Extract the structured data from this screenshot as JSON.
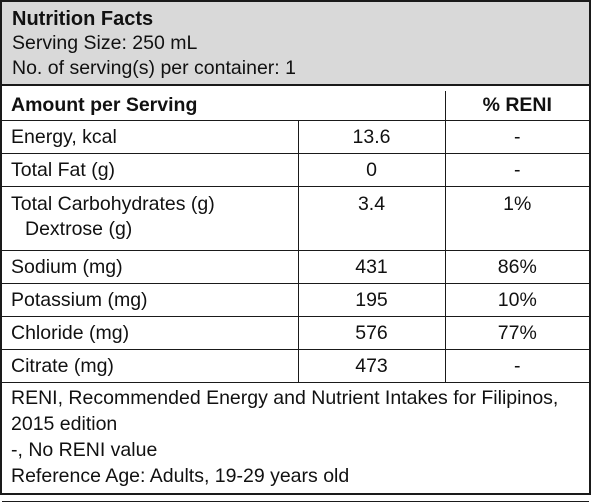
{
  "header": {
    "title": "Nutrition Facts",
    "serving_size": "Serving Size: 250 mL",
    "servings_per_container": "No. of serving(s) per container: 1"
  },
  "table": {
    "col_amount": "Amount per Serving",
    "col_reni": "% RENI",
    "rows": [
      {
        "label": "Energy, kcal",
        "value": "13.6",
        "reni": "-"
      },
      {
        "label": "Total Fat (g)",
        "value": "0",
        "reni": "-"
      },
      {
        "label": "Total Carbohydrates (g)",
        "sublabel": "Dextrose (g)",
        "value": "3.4",
        "reni": "1%"
      },
      {
        "label": "Sodium (mg)",
        "value": "431",
        "reni": "86%"
      },
      {
        "label": "Potassium (mg)",
        "value": "195",
        "reni": "10%"
      },
      {
        "label": "Chloride (mg)",
        "value": "576",
        "reni": "77%"
      },
      {
        "label": "Citrate (mg)",
        "value": "473",
        "reni": "-"
      }
    ]
  },
  "footnotes": {
    "line1": "RENI, Recommended Energy and Nutrient Intakes for Filipinos, 2015 edition",
    "line2": "-, No RENI value",
    "line3": "Reference Age: Adults, 19-29 years old"
  }
}
